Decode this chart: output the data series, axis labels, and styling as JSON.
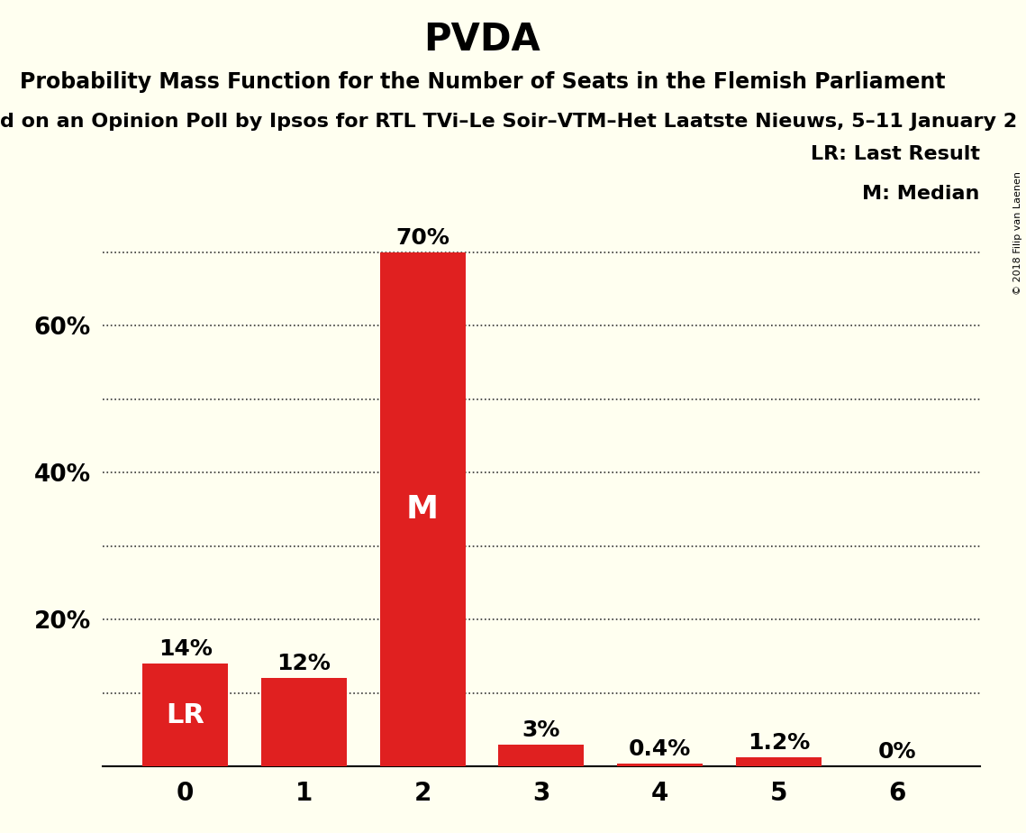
{
  "title": "PVDA",
  "subtitle": "Probability Mass Function for the Number of Seats in the Flemish Parliament",
  "subtitle2": "d on an Opinion Poll by Ipsos for RTL TVi–Le Soir–VTM–Het Laatste Nieuws, 5–11 January 2",
  "copyright": "© 2018 Filip van Laenen",
  "categories": [
    0,
    1,
    2,
    3,
    4,
    5,
    6
  ],
  "values": [
    0.14,
    0.12,
    0.7,
    0.03,
    0.004,
    0.012,
    0.0
  ],
  "bar_color": "#e02020",
  "background_color": "#fffff0",
  "ytick_labels": [
    0.2,
    0.4,
    0.6
  ],
  "ygrid_dotted": [
    0.1,
    0.2,
    0.3,
    0.4,
    0.5,
    0.6,
    0.7
  ],
  "ylim": [
    0,
    0.76
  ],
  "bar_labels": [
    "14%",
    "12%",
    "70%",
    "3%",
    "0.4%",
    "1.2%",
    "0%"
  ],
  "lr_bar_index": 0,
  "median_bar_index": 2,
  "legend_lr": "LR: Last Result",
  "legend_m": "M: Median",
  "title_fontsize": 30,
  "subtitle_fontsize": 17,
  "subtitle2_fontsize": 16,
  "ytick_fontsize": 19,
  "xtick_fontsize": 20,
  "bar_label_fontsize": 18,
  "lr_fontsize": 22,
  "m_fontsize": 26,
  "legend_fontsize": 16,
  "copyright_fontsize": 8
}
